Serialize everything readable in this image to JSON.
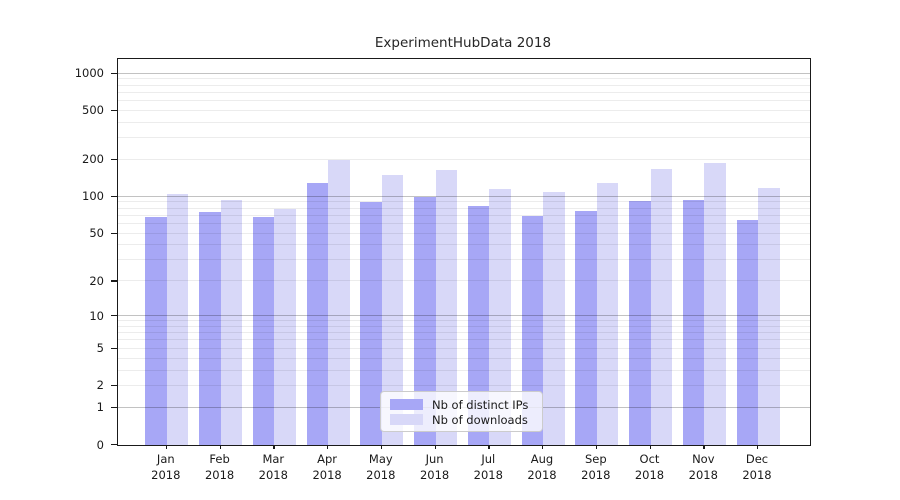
{
  "title": "ExperimentHubData 2018",
  "colors": {
    "bar_distinct_ips": "#a7a7f6",
    "bar_downloads": "#d8d8f8",
    "grid_major": "rgba(0,0,0,0.24)",
    "grid_minor": "rgba(0,0,0,0.075)",
    "spine": "#1a1a1a",
    "text": "#1a1a1a",
    "legend_border": "#cccccc",
    "legend_background": "rgba(255,255,255,0.8)"
  },
  "chart_data": {
    "type": "bar",
    "title": "ExperimentHubData 2018",
    "categories": [
      "Jan 2018",
      "Feb 2018",
      "Mar 2018",
      "Apr 2018",
      "May 2018",
      "Jun 2018",
      "Jul 2018",
      "Aug 2018",
      "Sep 2018",
      "Oct 2018",
      "Nov 2018",
      "Dec 2018"
    ],
    "series": [
      {
        "name": "Nb of distinct IPs",
        "color": "#a7a7f6",
        "values": [
          68,
          75,
          69,
          129,
          90,
          100,
          84,
          70,
          76,
          92,
          94,
          65
        ]
      },
      {
        "name": "Nb of downloads",
        "color": "#d8d8f8",
        "values": [
          105,
          94,
          80,
          200,
          150,
          164,
          115,
          110,
          130,
          170,
          187,
          119
        ]
      }
    ],
    "xlabel": "",
    "ylabel": "",
    "yscale": "log10(value+1)",
    "ylim": [
      0,
      1310
    ],
    "yticks": [
      0,
      1,
      2,
      5,
      10,
      20,
      50,
      100,
      200,
      500,
      1000
    ],
    "major_grid_values": [
      1,
      10,
      100,
      1000
    ],
    "minor_grid_values": [
      2,
      3,
      4,
      5,
      6,
      7,
      8,
      9,
      20,
      30,
      40,
      50,
      60,
      70,
      80,
      90,
      200,
      300,
      400,
      500,
      600,
      700,
      800,
      900
    ],
    "grid": true,
    "legend_position": "lower center"
  }
}
